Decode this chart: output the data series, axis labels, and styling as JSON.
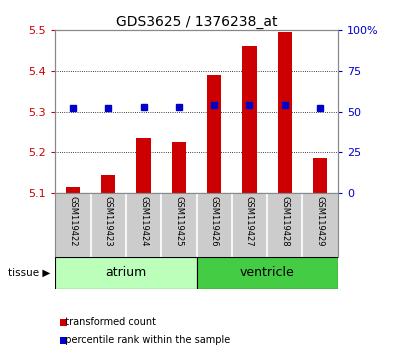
{
  "title": "GDS3625 / 1376238_at",
  "samples": [
    "GSM119422",
    "GSM119423",
    "GSM119424",
    "GSM119425",
    "GSM119426",
    "GSM119427",
    "GSM119428",
    "GSM119429"
  ],
  "transformed_count": [
    5.115,
    5.145,
    5.235,
    5.225,
    5.39,
    5.46,
    5.495,
    5.185
  ],
  "percentile_rank": [
    52,
    52,
    53,
    53,
    54,
    54,
    54,
    52
  ],
  "bar_bottom": 5.1,
  "ylim_left": [
    5.1,
    5.5
  ],
  "ylim_right": [
    0,
    100
  ],
  "yticks_left": [
    5.1,
    5.2,
    5.3,
    5.4,
    5.5
  ],
  "yticks_right": [
    0,
    25,
    50,
    75,
    100
  ],
  "ytick_labels_right": [
    "0",
    "25",
    "50",
    "75",
    "100%"
  ],
  "bar_color": "#cc0000",
  "dot_color": "#0000cc",
  "tissue_groups": [
    {
      "label": "atrium",
      "n": 4,
      "color": "#bbffbb"
    },
    {
      "label": "ventricle",
      "n": 4,
      "color": "#44cc44"
    }
  ],
  "legend_bar_label": "transformed count",
  "legend_dot_label": "percentile rank within the sample",
  "tissue_label": "tissue",
  "background_color": "#ffffff",
  "plot_bg_color": "#ffffff",
  "label_bg_color": "#cccccc",
  "tick_label_color_left": "#cc0000",
  "tick_label_color_right": "#0000cc"
}
